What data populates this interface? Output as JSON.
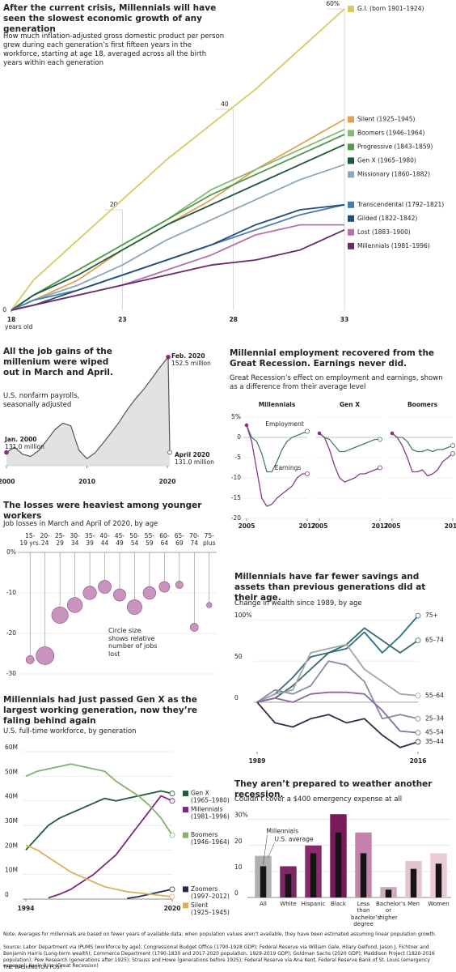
{
  "chart_data": [
    {
      "type": "line",
      "title": "After the current crisis, Millennials will have seen the slowest economic growth of any generation",
      "subtitle": "How much inflation-adjusted gross domestic product per person grew during each generation’s first fifteen years in the workforce, starting at age 18, averaged across all the birth years within each generation",
      "x_label": "years old",
      "x": [
        18,
        19,
        21,
        23,
        25,
        27,
        29,
        31,
        33
      ],
      "xlim": [
        18,
        33
      ],
      "xticks": [
        18,
        23,
        28,
        33
      ],
      "ylim": [
        0,
        60
      ],
      "yticks": [
        0,
        20,
        40,
        {
          "value": 60,
          "label": "60%"
        }
      ],
      "series": [
        {
          "name": "G.I. (born 1901–1924)",
          "color": "#d8cb5e",
          "values": [
            0,
            6,
            14,
            22,
            30,
            37,
            44,
            52,
            60
          ]
        },
        {
          "name": "Silent (1925–1945)",
          "color": "#e0a256",
          "values": [
            0,
            2,
            6,
            12,
            17,
            22,
            28,
            33,
            38
          ]
        },
        {
          "name": "Boomers (1946–1964)",
          "color": "#86bb6e",
          "values": [
            0,
            3,
            8,
            13,
            18,
            24,
            28,
            32,
            36
          ]
        },
        {
          "name": "Progressive (1843–1859)",
          "color": "#4f9a4c",
          "values": [
            0,
            3,
            8,
            13,
            18,
            23,
            27,
            31,
            35
          ]
        },
        {
          "name": "Gen X (1965–1980)",
          "color": "#1f5a3a",
          "values": [
            0,
            3,
            7,
            12,
            17,
            21,
            25,
            29,
            33
          ]
        },
        {
          "name": "Missionary (1860–1882)",
          "color": "#8ea6b8",
          "values": [
            0,
            2,
            5,
            9,
            14,
            18,
            22,
            26,
            29
          ]
        },
        {
          "name": "Transcendental (1792–1821)",
          "color": "#4a7ab0",
          "values": [
            0,
            2,
            4,
            7,
            10,
            13,
            16,
            19,
            21
          ]
        },
        {
          "name": "Gilded (1822–1842)",
          "color": "#1f4f7a",
          "values": [
            0,
            1,
            4,
            7,
            10,
            13,
            17,
            20,
            21
          ]
        },
        {
          "name": "Lost (1883–1900)",
          "color": "#b472ac",
          "values": [
            0,
            1,
            3,
            5,
            8,
            11,
            15,
            17,
            17
          ]
        },
        {
          "name": "Millennials (1981–1996)",
          "color": "#6a2a6a",
          "values": [
            0,
            1,
            3,
            5,
            7,
            9,
            10,
            12,
            16
          ]
        }
      ]
    },
    {
      "type": "area",
      "title": "All the job gains of the millenium were wiped out in March and April.",
      "subtitle": "U.S. nonfarm payrolls, seasonally adjusted",
      "x": [
        2000,
        2001,
        2002,
        2003,
        2004,
        2005,
        2006,
        2007,
        2008,
        2009,
        2010,
        2011,
        2012,
        2013,
        2014,
        2015,
        2016,
        2017,
        2018,
        2019,
        2020.1,
        2020.3
      ],
      "values": [
        131.0,
        132.2,
        130.6,
        130.1,
        131.4,
        133.7,
        136.1,
        137.6,
        137.0,
        131.5,
        129.6,
        130.9,
        133.1,
        135.4,
        137.8,
        140.6,
        143.0,
        145.1,
        147.5,
        150.0,
        152.5,
        131.0
      ],
      "xlim": [
        2000,
        2020.3
      ],
      "xticks": [
        2000,
        2010,
        2020
      ],
      "ylim": [
        128,
        153
      ],
      "color": "#555555",
      "fill": "#e2e2e2",
      "dot_color": "#7a2a7a",
      "annotations": [
        [
          "Feb. 2020",
          "152.5 million"
        ],
        [
          "Jan. 2000",
          "131.0 million"
        ],
        [
          "April 2020",
          "131.0 million"
        ]
      ]
    },
    {
      "type": "line",
      "title": "Millennial employment recovered from the Great Recession. Earnings never did.",
      "subtitle": "Great Recession’s effect on employment and earnings, shown as a difference from their average level",
      "x": [
        2005,
        2006,
        2007,
        2008,
        2009,
        2010,
        2011,
        2012,
        2013,
        2014,
        2015,
        2016,
        2017
      ],
      "xlim": [
        2005,
        2017
      ],
      "xticks": [
        2005,
        2017
      ],
      "ylim": [
        -20,
        5
      ],
      "yticks": [
        {
          "value": 5,
          "label": "5%"
        },
        0,
        -5,
        -10,
        -15,
        -20
      ],
      "series": [
        {
          "name": "Employment",
          "color": "#4a7a78"
        },
        {
          "name": "Earnings",
          "color": "#8a3a8a"
        }
      ],
      "panels": [
        {
          "title": "Millennials",
          "values": [
            [
              3,
              0,
              -1,
              -4,
              -8.5,
              -8.5,
              -6,
              -3,
              -1,
              0,
              0.5,
              1,
              1.5
            ],
            [
              3,
              -1,
              -8,
              -15,
              -17,
              -16.5,
              -15,
              -14,
              -13,
              -12,
              -10,
              -9,
              -9
            ]
          ]
        },
        {
          "title": "Gen X",
          "values": [
            [
              1,
              0,
              -0.5,
              -2,
              -3.5,
              -3.5,
              -3,
              -2.5,
              -2,
              -1.5,
              -1,
              -0.5,
              -0.5
            ],
            [
              1,
              0,
              -3,
              -7,
              -10,
              -11,
              -10.5,
              -10,
              -9,
              -9,
              -8.5,
              -8,
              -7.5
            ]
          ]
        },
        {
          "title": "Boomers",
          "values": [
            [
              1,
              0,
              0,
              -1,
              -3,
              -3.5,
              -3.5,
              -3,
              -3.5,
              -3,
              -3,
              -2.5,
              -2
            ],
            [
              1,
              0,
              -2,
              -5,
              -8.5,
              -8.5,
              -8,
              -9.5,
              -9,
              -8,
              -6,
              -5,
              -4
            ]
          ]
        }
      ]
    },
    {
      "type": "bubble",
      "title": "The losses were heaviest among younger workers",
      "subtitle": "Job losses in March and April of 2020, by age",
      "categories": [
        [
          "15-",
          "19 yrs."
        ],
        [
          "20-",
          "24"
        ],
        [
          "25-",
          "29"
        ],
        [
          "30-",
          "34"
        ],
        [
          "35-",
          "39"
        ],
        [
          "40-",
          "44"
        ],
        [
          "45-",
          "49"
        ],
        [
          "50-",
          "54"
        ],
        [
          "55-",
          "59"
        ],
        [
          "60-",
          "64"
        ],
        [
          "65-",
          "69"
        ],
        [
          "70-",
          "74"
        ],
        [
          "75-",
          "plus"
        ]
      ],
      "values": [
        -26.5,
        -25.5,
        -15.5,
        -13,
        -10,
        -8.5,
        -10.5,
        -13.5,
        -10,
        -8.5,
        -8,
        -18.5,
        -13
      ],
      "sizes": [
        0.7,
        3.4,
        2.9,
        2.4,
        1.9,
        1.8,
        1.6,
        2.3,
        1.7,
        1.2,
        0.6,
        0.7,
        0.3
      ],
      "ylim": [
        -30,
        0
      ],
      "yticks": [
        {
          "value": 0,
          "label": "0%"
        },
        -10,
        -20,
        -30
      ],
      "color": "#c894be",
      "annotation": "Circle size shows relative number of jobs lost"
    },
    {
      "type": "line",
      "title": "Millennials had just passed Gen X as the largest working generation, now they’re faling behind again",
      "subtitle": "U.S. full-time workforce, by generation",
      "x": [
        1994,
        1996,
        1998,
        2000,
        2002,
        2004,
        2006,
        2008,
        2010,
        2012,
        2014,
        2016,
        2018,
        2020
      ],
      "xlim": [
        1994,
        2020
      ],
      "xticks": [
        1994,
        2020
      ],
      "ylim": [
        0,
        60
      ],
      "yticks": [
        0,
        {
          "value": 10,
          "label": "10M"
        },
        {
          "value": 20,
          "label": "20M"
        },
        {
          "value": 30,
          "label": "30M"
        },
        {
          "value": 40,
          "label": "40M"
        },
        {
          "value": 50,
          "label": "50M"
        },
        {
          "value": 60,
          "label": "60M"
        }
      ],
      "series": [
        {
          "name": "Gen X",
          "years": "(1965–1980)",
          "color": "#1f5a3a",
          "values": [
            20,
            25,
            30,
            33,
            35,
            37,
            39,
            41,
            40,
            41,
            42,
            43,
            44,
            43
          ]
        },
        {
          "name": "Millennials",
          "years": "(1981–1996)",
          "color": "#7a2a7a",
          "values": [
            null,
            null,
            0.5,
            2,
            4,
            7,
            10,
            14,
            18,
            24,
            30,
            36,
            42,
            40
          ]
        },
        {
          "name": "Boomers",
          "years": "(1946–1964)",
          "color": "#86b06e",
          "values": [
            50,
            52,
            53,
            54,
            55,
            54,
            53,
            52,
            48,
            45,
            42,
            38,
            33,
            26
          ]
        },
        {
          "name": "Zoomers",
          "years": "(1997–2012)",
          "color": "#2a2a4a",
          "values": [
            null,
            null,
            null,
            null,
            null,
            null,
            null,
            null,
            null,
            0.3,
            1,
            2,
            3,
            4
          ]
        },
        {
          "name": "Silent",
          "years": "(1925–1945)",
          "color": "#d8b25a",
          "values": [
            22,
            20,
            17,
            14,
            11,
            9,
            7,
            5,
            4,
            3,
            2.5,
            2,
            1.5,
            1
          ]
        }
      ]
    },
    {
      "type": "line",
      "title": "Millennials have far fewer savings and assets than previous generations did at their age.",
      "subtitle": "Change in wealth since 1989, by age",
      "x": [
        1989,
        1992,
        1995,
        1998,
        2001,
        2004,
        2007,
        2010,
        2013,
        2016
      ],
      "xlim": [
        1989,
        2016
      ],
      "xticks": [
        1989,
        2016
      ],
      "ylim": [
        -60,
        110
      ],
      "yticks": [
        0,
        50,
        {
          "value": 100,
          "label": "100%"
        }
      ],
      "series": [
        {
          "name": "75+",
          "color": "#2f6f8a",
          "values": [
            0,
            10,
            30,
            55,
            60,
            65,
            85,
            60,
            80,
            105
          ]
        },
        {
          "name": "65–74",
          "color": "#3a6a66",
          "values": [
            0,
            5,
            20,
            40,
            60,
            70,
            90,
            75,
            60,
            75
          ]
        },
        {
          "name": "55–64",
          "color": "#a4a4ac",
          "values": [
            0,
            10,
            15,
            60,
            65,
            70,
            40,
            25,
            10,
            8
          ]
        },
        {
          "name": "25–34",
          "color": "#8a8aa4",
          "values": [
            0,
            15,
            10,
            20,
            50,
            45,
            25,
            -20,
            -15,
            -20
          ]
        },
        {
          "name": "45–54",
          "color": "#8a6a9a",
          "values": [
            0,
            5,
            0,
            10,
            12,
            12,
            10,
            -10,
            -35,
            -37
          ]
        },
        {
          "name": "35–44",
          "color": "#3a2a4a",
          "values": [
            0,
            -25,
            -30,
            -20,
            -15,
            -25,
            -20,
            -40,
            -55,
            -48
          ]
        }
      ]
    },
    {
      "type": "bar",
      "title": "They aren’t prepared to weather another recession.",
      "subtitle": "Couldn’t cover a $400 emergency expense at all",
      "categories": [
        "All",
        "White",
        "Hispanic",
        "Black",
        "Less than bachelor’s degree",
        "Bachelor’s or higher",
        "Men",
        "Women"
      ],
      "ylim": [
        0,
        33
      ],
      "yticks": [
        0,
        10,
        20,
        {
          "value": 30,
          "label": "30%"
        }
      ],
      "series": [
        {
          "name": "U.S. average",
          "colors": [
            "#b0b0b0",
            "#7a2a5e",
            "#8a2a6c",
            "#7a1a5a",
            "#c482ac",
            "#ccaac0",
            "#e2c4d4",
            "#eacad9"
          ],
          "values": [
            16,
            12,
            20,
            32,
            25,
            4,
            14,
            17
          ]
        },
        {
          "name": "Millennials",
          "color": "#141414",
          "values": [
            12,
            9,
            17,
            25,
            17,
            3,
            11,
            13
          ]
        }
      ]
    }
  ],
  "footer": {
    "note": "Note: Averages for millennials are based on fewer years of available data; when population values aren’t available, they have been estimated assuming linear population growth.",
    "source": "Source: Labor Department via IPUMS (workforce by age); Congressional Budget Office (1790-1928 GDP); Federal Reserve via William Gale, Hilary Gelfond, Jason J. Fichtner and Benjamin Harris (Long-term wealth); Commerce Department (1790-1830 and 2017-2020 population, 1929-2019 GDP); Goldman Sachs (2020 GDP); Maddison Project (1820-2016 population); Pew Research (generations after 1925); Strauss and Howe (generations before 1925); Federal Reserve via Ana Kent, Federal Reserve Bank of St. Louis (emergency expense); Kevin Rinz (Great Recession)",
    "credit": "THE WASHINGTON POST"
  }
}
